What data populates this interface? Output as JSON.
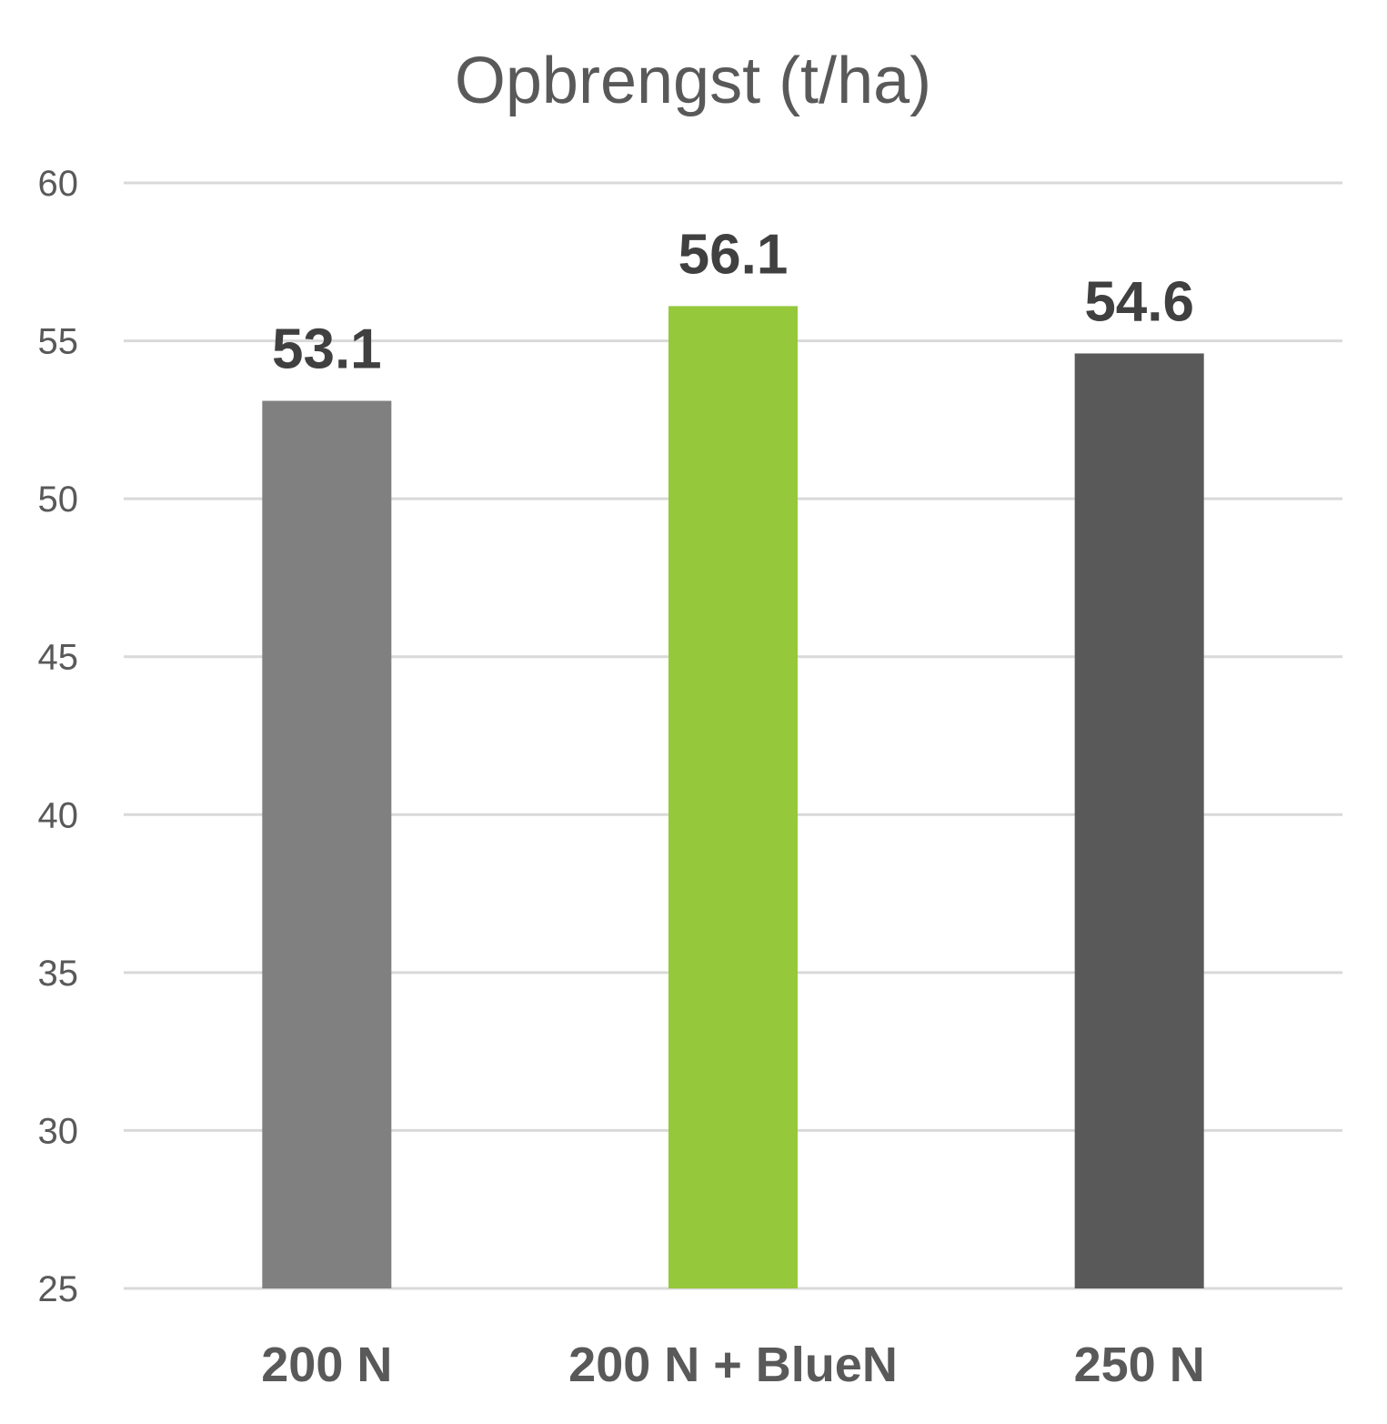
{
  "chart_data": {
    "type": "bar",
    "title": "Opbrengst (t/ha)",
    "xlabel": "",
    "ylabel": "",
    "categories": [
      "200 N",
      "200 N + BlueN",
      "250 N"
    ],
    "values": [
      53.1,
      56.1,
      54.6
    ],
    "data_labels": [
      "53.1",
      "56.1",
      "54.6"
    ],
    "bar_colors": [
      "#808080",
      "#96c83c",
      "#595959"
    ],
    "ylim": [
      25,
      60
    ],
    "yticks": [
      25,
      30,
      35,
      40,
      45,
      50,
      55,
      60
    ],
    "grid": true,
    "legend": "none"
  }
}
